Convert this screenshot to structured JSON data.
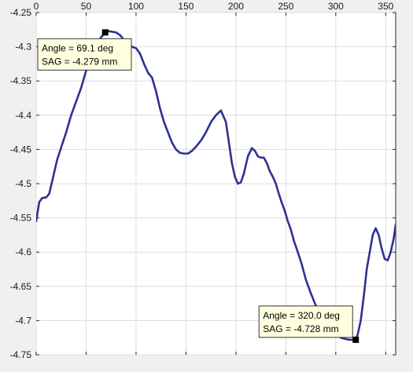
{
  "chart_data": {
    "type": "line",
    "title": "",
    "xlabel": "",
    "ylabel": "",
    "xlim": [
      0,
      360
    ],
    "ylim": [
      -4.75,
      -4.25
    ],
    "grid": true,
    "xticks": [
      0,
      50,
      100,
      150,
      200,
      250,
      300,
      350
    ],
    "xtick_labels": [
      "0",
      "50",
      "100",
      "150",
      "200",
      "250",
      "300",
      "350"
    ],
    "xaxis_location": "top",
    "yaxis_direction": "reverse",
    "yticks": [
      -4.25,
      -4.3,
      -4.35,
      -4.4,
      -4.45,
      -4.5,
      -4.55,
      -4.6,
      -4.65,
      -4.7,
      -4.75
    ],
    "ytick_labels": [
      "-4.25",
      "-4.3",
      "-4.35",
      "-4.4",
      "-4.45",
      "-4.5",
      "-4.55",
      "-4.6",
      "-4.65",
      "-4.7",
      "-4.75"
    ],
    "line_color": "#2e3192",
    "series": [
      {
        "x": [
          0,
          3,
          6,
          10,
          13,
          17,
          21,
          25,
          30,
          35,
          40,
          45,
          50,
          55,
          60,
          65,
          69.1,
          72,
          76,
          80,
          84,
          88,
          92,
          96,
          100,
          104,
          108,
          112,
          116,
          120,
          124,
          128,
          132,
          136,
          140,
          144,
          148,
          152,
          156,
          160,
          165,
          170,
          175,
          180,
          185,
          190,
          193,
          196,
          199,
          202,
          205,
          208,
          212,
          216,
          219,
          222,
          225,
          228,
          231,
          234,
          237,
          240,
          243,
          246,
          249,
          252,
          255,
          258,
          262,
          266,
          270,
          275,
          280,
          285,
          290,
          295,
          300,
          305,
          310,
          314,
          318,
          320,
          322,
          325,
          328,
          331,
          334,
          337,
          340,
          343,
          346,
          349,
          352,
          355,
          358,
          360
        ],
        "y": [
          -4.555,
          -4.527,
          -4.521,
          -4.52,
          -4.515,
          -4.49,
          -4.465,
          -4.447,
          -4.425,
          -4.4,
          -4.38,
          -4.36,
          -4.335,
          -4.31,
          -4.3,
          -4.286,
          -4.279,
          -4.277,
          -4.278,
          -4.279,
          -4.283,
          -4.29,
          -4.297,
          -4.3,
          -4.302,
          -4.31,
          -4.325,
          -4.338,
          -4.345,
          -4.365,
          -4.39,
          -4.41,
          -4.425,
          -4.44,
          -4.45,
          -4.455,
          -4.456,
          -4.456,
          -4.452,
          -4.446,
          -4.437,
          -4.425,
          -4.41,
          -4.4,
          -4.393,
          -4.41,
          -4.44,
          -4.47,
          -4.49,
          -4.5,
          -4.498,
          -4.485,
          -4.46,
          -4.448,
          -4.452,
          -4.46,
          -4.462,
          -4.462,
          -4.47,
          -4.482,
          -4.49,
          -4.5,
          -4.515,
          -4.528,
          -4.54,
          -4.555,
          -4.567,
          -4.583,
          -4.6,
          -4.618,
          -4.64,
          -4.66,
          -4.678,
          -4.69,
          -4.7,
          -4.712,
          -4.72,
          -4.725,
          -4.727,
          -4.728,
          -4.728,
          -4.728,
          -4.72,
          -4.7,
          -4.665,
          -4.625,
          -4.6,
          -4.575,
          -4.565,
          -4.575,
          -4.595,
          -4.61,
          -4.612,
          -4.6,
          -4.58,
          -4.56
        ]
      }
    ],
    "datatips": [
      {
        "x": 69.1,
        "y": -4.279,
        "box_anchor": "left",
        "line1": "Angle = 69.1 deg",
        "line2": "SAG = -4.279 mm"
      },
      {
        "x": 320.0,
        "y": -4.728,
        "box_anchor": "above-left",
        "line1": "Angle = 320.0 deg",
        "line2": "SAG = -4.728 mm"
      }
    ]
  }
}
